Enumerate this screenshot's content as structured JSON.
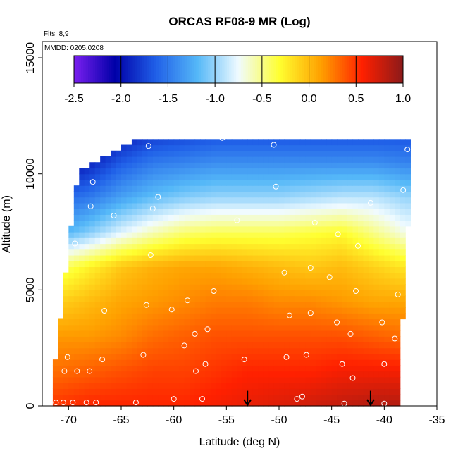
{
  "chart_data": {
    "type": "heatmap",
    "title": "ORCAS RF08-9 MR (Log)",
    "annotations": [
      "Flts: 8,9",
      "MMDD: 0205,0208"
    ],
    "xlabel": "Latitude (deg N)",
    "ylabel": "Altitude (m)",
    "xlim": [
      -72.5,
      -35
    ],
    "ylim": [
      0,
      15700
    ],
    "xticks": [
      -70,
      -65,
      -60,
      -55,
      -50,
      -45,
      -40,
      -35
    ],
    "xtick_labels": [
      "-70",
      "-65",
      "-60",
      "-55",
      "-50",
      "-45",
      "-40",
      "-35"
    ],
    "yticks": [
      0,
      5000,
      10000,
      15000
    ],
    "ytick_labels": [
      "0",
      "5000",
      "10000",
      "15000"
    ],
    "colorbar": {
      "min": -2.5,
      "max": 1.0,
      "ticks": [
        -2.5,
        -2.0,
        -1.5,
        -1.0,
        -0.5,
        0.0,
        0.5,
        1.0
      ],
      "tick_labels": [
        "-2.5",
        "-2.0",
        "-1.5",
        "-1.0",
        "-0.5",
        "0.0",
        "0.5",
        "1.0"
      ],
      "colors": [
        "#7a1ff0",
        "#0000a8",
        "#2060e8",
        "#55b8f8",
        "#f0fbff",
        "#ffff30",
        "#ffa000",
        "#ff2000",
        "#8b1a1a"
      ]
    },
    "field_lat_grid": [
      -71,
      -68,
      -65,
      -62,
      -59,
      -56,
      -53,
      -50,
      -47,
      -44,
      -41,
      -38
    ],
    "field_alt_grid": [
      0,
      1500,
      3000,
      4500,
      6000,
      7500,
      9000,
      10500,
      11500
    ],
    "log_mr_field": [
      [
        0.5,
        0.55,
        0.55,
        0.55,
        0.55,
        0.6,
        0.65,
        0.7,
        0.75,
        0.8,
        0.85,
        0.85
      ],
      [
        0.3,
        0.35,
        0.4,
        0.45,
        0.45,
        0.5,
        0.55,
        0.55,
        0.55,
        0.6,
        0.6,
        0.6
      ],
      [
        0.15,
        0.15,
        0.2,
        0.3,
        0.35,
        0.4,
        0.4,
        0.4,
        0.4,
        0.4,
        0.35,
        0.3
      ],
      [
        -0.1,
        0.0,
        0.1,
        0.15,
        0.2,
        0.25,
        0.25,
        0.2,
        0.2,
        0.15,
        0.1,
        0.1
      ],
      [
        -0.45,
        -0.25,
        -0.05,
        0.05,
        0.1,
        0.1,
        0.05,
        0.0,
        -0.05,
        0.0,
        -0.1,
        -0.2
      ],
      [
        -1.25,
        -1.05,
        -0.8,
        -0.6,
        -0.45,
        -0.4,
        -0.4,
        -0.4,
        -0.35,
        -0.3,
        -0.5,
        -0.7
      ],
      [
        -1.6,
        -1.5,
        -1.3,
        -1.15,
        -1.05,
        -1.0,
        -1.0,
        -1.0,
        -0.95,
        -0.9,
        -0.9,
        -1.0
      ],
      [
        -2.1,
        -1.9,
        -1.65,
        -1.5,
        -1.45,
        -1.4,
        -1.4,
        -1.4,
        -1.4,
        -1.4,
        -1.4,
        -1.45
      ],
      [
        -2.3,
        -2.1,
        -1.9,
        -1.75,
        -1.7,
        -1.65,
        -1.65,
        -1.65,
        -1.65,
        -1.65,
        -1.65,
        -1.65
      ]
    ],
    "field_lat_min": -71.5,
    "field_lat_max_bottom": -39,
    "field_lat_max_top": -37.5,
    "field_alt_max": 11500,
    "field_top_left_lat": -68.5,
    "obs_points": [
      {
        "lat": -71.2,
        "alt": 150
      },
      {
        "lat": -70.5,
        "alt": 150
      },
      {
        "lat": -69.6,
        "alt": 150
      },
      {
        "lat": -68.3,
        "alt": 150
      },
      {
        "lat": -67.4,
        "alt": 150
      },
      {
        "lat": -63.6,
        "alt": 150
      },
      {
        "lat": -60.0,
        "alt": 300
      },
      {
        "lat": -57.3,
        "alt": 300
      },
      {
        "lat": -48.3,
        "alt": 300
      },
      {
        "lat": -47.8,
        "alt": 400
      },
      {
        "lat": -43.8,
        "alt": 100
      },
      {
        "lat": -40.0,
        "alt": 100
      },
      {
        "lat": -70.4,
        "alt": 1500
      },
      {
        "lat": -69.2,
        "alt": 1500
      },
      {
        "lat": -68.0,
        "alt": 1500
      },
      {
        "lat": -66.8,
        "alt": 2000
      },
      {
        "lat": -70.1,
        "alt": 2100
      },
      {
        "lat": -62.9,
        "alt": 2200
      },
      {
        "lat": -57.9,
        "alt": 1500
      },
      {
        "lat": -57.0,
        "alt": 1800
      },
      {
        "lat": -53.3,
        "alt": 2000
      },
      {
        "lat": -49.3,
        "alt": 2100
      },
      {
        "lat": -47.4,
        "alt": 2200
      },
      {
        "lat": -44.0,
        "alt": 1800
      },
      {
        "lat": -43.0,
        "alt": 1200
      },
      {
        "lat": -40.0,
        "alt": 1800
      },
      {
        "lat": -39.0,
        "alt": 2900
      },
      {
        "lat": -59.0,
        "alt": 2600
      },
      {
        "lat": -58.0,
        "alt": 3100
      },
      {
        "lat": -56.8,
        "alt": 3300
      },
      {
        "lat": -49.0,
        "alt": 3900
      },
      {
        "lat": -47.0,
        "alt": 4000
      },
      {
        "lat": -44.5,
        "alt": 3600
      },
      {
        "lat": -43.2,
        "alt": 3100
      },
      {
        "lat": -40.2,
        "alt": 3600
      },
      {
        "lat": -62.6,
        "alt": 4350
      },
      {
        "lat": -60.2,
        "alt": 4150
      },
      {
        "lat": -58.7,
        "alt": 4550
      },
      {
        "lat": -66.6,
        "alt": 4100
      },
      {
        "lat": -56.2,
        "alt": 4950
      },
      {
        "lat": -49.5,
        "alt": 5750
      },
      {
        "lat": -47.0,
        "alt": 5950
      },
      {
        "lat": -45.2,
        "alt": 5550
      },
      {
        "lat": -42.7,
        "alt": 4950
      },
      {
        "lat": -38.7,
        "alt": 4800
      },
      {
        "lat": -62.2,
        "alt": 6500
      },
      {
        "lat": -69.4,
        "alt": 7000
      },
      {
        "lat": -42.5,
        "alt": 6900
      },
      {
        "lat": -44.4,
        "alt": 7400
      },
      {
        "lat": -46.6,
        "alt": 7900
      },
      {
        "lat": -65.7,
        "alt": 8200
      },
      {
        "lat": -67.9,
        "alt": 8600
      },
      {
        "lat": -54.0,
        "alt": 8000
      },
      {
        "lat": -62.0,
        "alt": 8500
      },
      {
        "lat": -61.5,
        "alt": 9000
      },
      {
        "lat": -50.3,
        "alt": 9450
      },
      {
        "lat": -38.2,
        "alt": 9300
      },
      {
        "lat": -41.3,
        "alt": 8750
      },
      {
        "lat": -67.7,
        "alt": 9650
      },
      {
        "lat": -67.4,
        "alt": 10800
      },
      {
        "lat": -62.4,
        "alt": 11200
      },
      {
        "lat": -62.6,
        "alt": 11650
      },
      {
        "lat": -55.4,
        "alt": 11550
      },
      {
        "lat": -50.5,
        "alt": 11250
      },
      {
        "lat": -37.8,
        "alt": 11050
      }
    ],
    "arrows": [
      {
        "lat": -53.0,
        "alt_top": 650,
        "alt_bottom": 0
      },
      {
        "lat": -41.3,
        "alt_top": 650,
        "alt_bottom": 0
      }
    ]
  }
}
